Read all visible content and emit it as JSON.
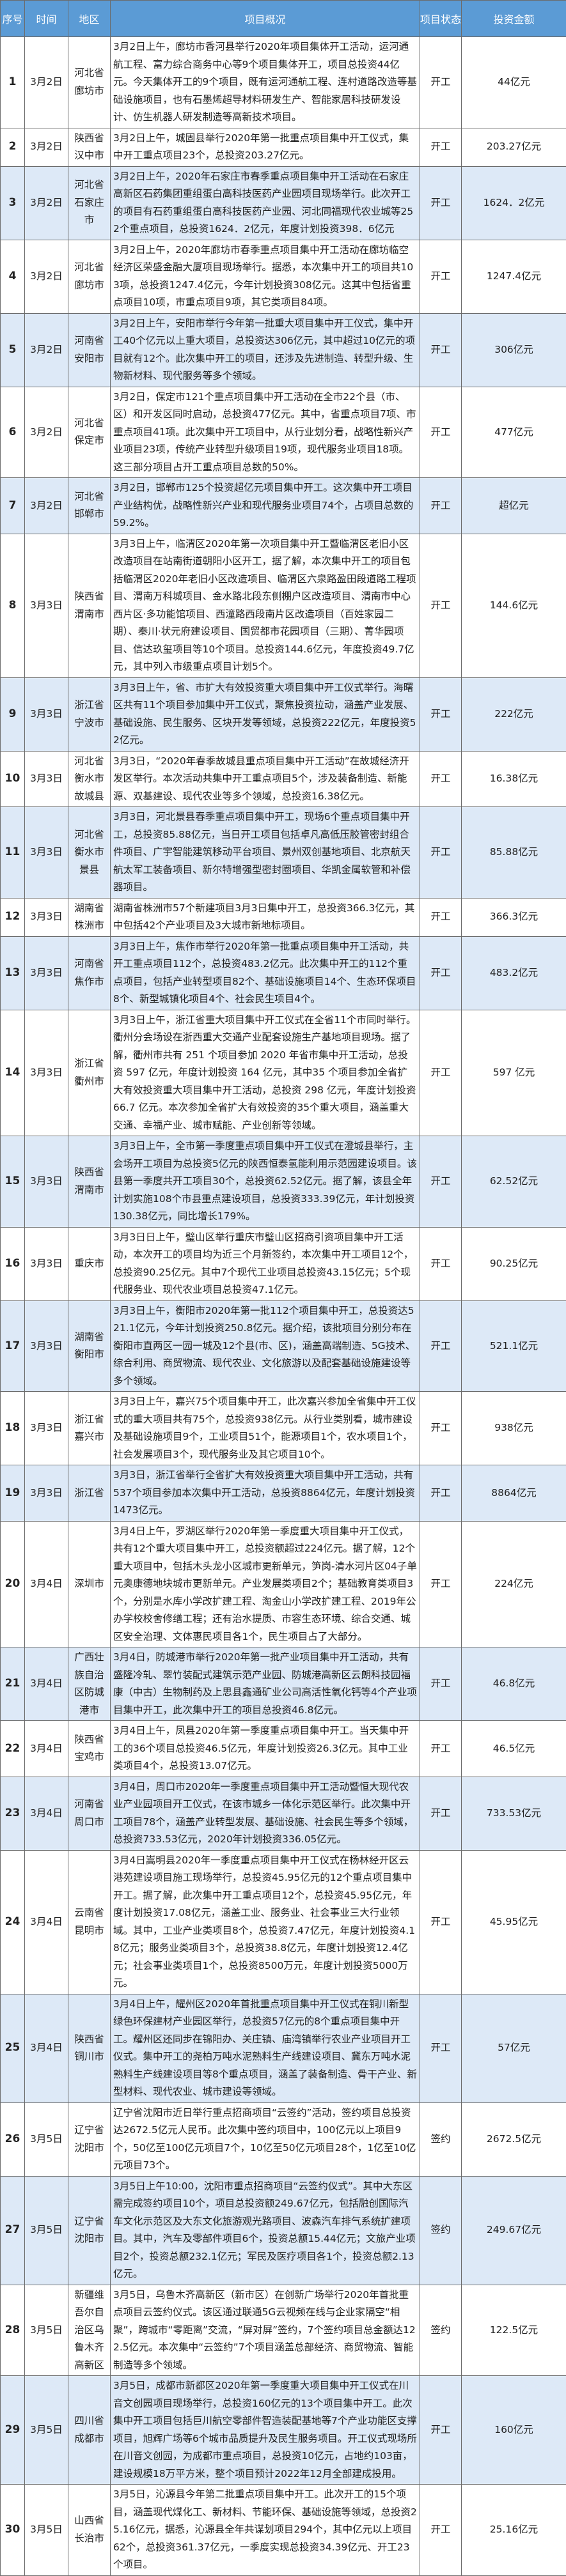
{
  "header": {
    "index": "序号",
    "date": "时间",
    "region": "地区",
    "overview": "项目概况",
    "status": "项目状态",
    "amount": "投资金额"
  },
  "colors": {
    "header_bg": "#5b9bd5",
    "alt_row_bg": "#dde9f7"
  },
  "rows": [
    {
      "no": "1",
      "date": "3月2日",
      "region": "河北省廊坊市",
      "overview": "3月2日上午，廊坊市香河县举行2020年项目集体开工活动，运河通航工程、富力综合商务中心等9个项目集体开工，项目总投资44亿元。今天集体开工的9个项目，既有运河通航工程、连村道路改造等基础设施项目，也有石墨烯超导材料研发生产、智能家居科技研发设计、仿生机器人研发制造等高新技术项目。",
      "status": "开工",
      "amount": "44亿元",
      "alt": false
    },
    {
      "no": "2",
      "date": "3月2日",
      "region": "陕西省汉中市",
      "overview": "3月2日上午，城固县举行2020年第一批重点项目集中开工仪式，集中开工重点项目23个，总投资203.27亿元。",
      "status": "开工",
      "amount": "203.27亿元",
      "alt": false
    },
    {
      "no": "3",
      "date": "3月2日",
      "region": "河北省石家庄市",
      "overview": "3月2日上午，2020年石家庄市春季重点项目集中开工活动在石家庄高新区石药集团重组蛋白高科技医药产业园项目现场举行。此次开工的项目有石药重组蛋白高科技医药产业园、河北同福现代农业城等252个重点项目，总投资1624．2亿元，年度计划投资398．6亿元",
      "status": "开工",
      "amount": "1624．2亿元",
      "alt": true
    },
    {
      "no": "4",
      "date": "3月2日",
      "region": "河北省廊坊市",
      "overview": "3月2日上午，2020年廊坊市春季重点项目集中开工活动在廊坊临空经济区荣盛金融大厦项目现场举行。据悉，本次集中开工的项目共103项，总投资1247.4亿元，今年计划投资308亿元。这其中包括省重点项目10项，市重点项目9项，其它类项目84项。",
      "status": "开工",
      "amount": "1247.4亿元",
      "alt": false
    },
    {
      "no": "5",
      "date": "3月2日",
      "region": "河南省安阳市",
      "overview": "3月2日上午，安阳市举行今年第一批重大项目集中开工仪式，集中开工40个亿元以上重大项目，总投资达306亿元，其中超过10亿元的项目就有12个。此次集中开工的项目，还涉及先进制造、转型升级、生物新材料、现代服务等多个领域。",
      "status": "开工",
      "amount": "306亿元",
      "alt": true
    },
    {
      "no": "6",
      "date": "3月2日",
      "region": "河北省保定市",
      "overview": "3月2日，保定市121个重点项目集中开工活动在全市22个县（市、区）和开发区同时启动，总投资477亿元。其中，省重点项目7项、市重点项目41项。此次集中开工项目中，从行业划分看，战略性新兴产业项目23项，传统产业转型升级项目19项，现代服务业项目18项。这三部分项目占开工重点项目总数的50%。",
      "status": "开工",
      "amount": "477亿元",
      "alt": false
    },
    {
      "no": "7",
      "date": "3月2日",
      "region": "河北省邯郸市",
      "overview": "3月2日，邯郸市125个投资超亿元项目集中开工。这次集中开工项目产业结构优，战略性新兴产业和现代服务业项目74个，占项目总数的59.2%。",
      "status": "开工",
      "amount": "超亿元",
      "alt": true
    },
    {
      "no": "8",
      "date": "3月3日",
      "region": "陕西省渭南市",
      "overview": "3月3日上午，临渭区2020年第一次项目集中开工暨临渭区老旧小区改造项目在站南街道朝阳小区开工，据了解，本次集中开工的项目包括临渭区2020年老旧小区改造项目、临渭区六泉路盈田段道路工程项目、渭南万科城项目、金水路北段东侧棚户区改造项目、渭南市中心西片区·多功能馆项目、西潼路西段南片区改造项目（百姓家园二期）、秦川·状元府建设项目、国贸都市花园项目（三期）、菁华园项目、信达玖玺项目等10个项目。总投资144.6亿元，年度投资49.7亿元，其中列入市级重点项目计划5个。",
      "status": "开工",
      "amount": "144.6亿元",
      "alt": false
    },
    {
      "no": "9",
      "date": "3月3日",
      "region": "浙江省宁波市",
      "overview": "3月3日上午，省、市扩大有效投资重大项目集中开工仪式举行。海曙区共有11个项目参加集中开工仪式，聚焦投资拉动，涵盖产业发展、基础设施、民生服务、区块开发等领域，总投资222亿元，年度投资52亿元。",
      "status": "开工",
      "amount": "222亿元",
      "alt": true
    },
    {
      "no": "10",
      "date": "3月3日",
      "region": "河北省衡水市故城县",
      "overview": "3月3日，“2020年春季故城县重点项目集中开工活动”在故城经济开发区举行。本次活动共集中开工重点项目5个，涉及装备制造、新能源、双基建设、现代农业等多个领域，总投资16.38亿元。",
      "status": "开工",
      "amount": "16.38亿元",
      "alt": false
    },
    {
      "no": "11",
      "date": "3月3日",
      "region": "河北省衡水市景县",
      "overview": "3月3日，河北景县春季重点项目集中开工，现场6个重点项目集中开工，总投资85.88亿元，当日开工项目包括卓凡高低压胶管密封组合件项目、广宇智能建筑移动平台项目、景州双创基地项目、北京航天航太军工装备项目、新尔特增强型密封圈项目、华凯金属软管和补偿器项目。",
      "status": "开工",
      "amount": "85.88亿元",
      "alt": true
    },
    {
      "no": "12",
      "date": "3月3日",
      "region": "湖南省株洲市",
      "overview": "湖南省株洲市57个新建项目3月3日集中开工，总投资366.3亿元，其中包括42个产业项目及3大城市新地标项目。",
      "status": "开工",
      "amount": "366.3亿元",
      "alt": false
    },
    {
      "no": "13",
      "date": "3月3日",
      "region": "河南省焦作市",
      "overview": "3月3日上午，焦作市举行2020年第一批重点项目集中开工活动，共开工重点项目112个，总投资483.2亿元。此次集中开工的112个重点项目，包括产业转型项目82个、基础设施项目14个、生态环保项目8个、新型城镇化项目4个、社会民生项目4个。",
      "status": "开工",
      "amount": "483.2亿元",
      "alt": true
    },
    {
      "no": "14",
      "date": "3月3日",
      "region": "浙江省衢州市",
      "overview": "3月3日上午，浙江省重大项目集中开工仪式在全省11个市同时举行。衢州分会场设在浙西重大交通产业配套设施生产基地项目现场。据了解，衢州市共有 251 个项目参加 2020 年省市集中开工活动，总投资 597 亿元，年度计划投资 164 亿元，其中35 个项目参加全省扩大有效投资重大项目集中开工活动，总投资 298 亿元，年度计划投资 66.7 亿元。本次参加全省扩大有效投资的35个重大项目，涵盖重大交通、幸福产业、城市赋能、产业创新等领域。",
      "status": "开工",
      "amount": "597 亿元",
      "alt": false
    },
    {
      "no": "15",
      "date": "3月3日",
      "region": "陕西省渭南市",
      "overview": "3月3日上午，全市第一季度重点项目集中开工仪式在澄城县举行，主会场开工项目为总投资5亿元的陕西恒泰氢能利用示范园建设项目。该县第一季度共开工项目30个，总投资62.52亿元。据了解，该县全年计划实施108个市县重点建设项目，总投资333.39亿元，年计划投资130.38亿元，同比增长179%。",
      "status": "开工",
      "amount": "62.52亿元",
      "alt": true
    },
    {
      "no": "16",
      "date": "3月3日",
      "region": "重庆市",
      "overview": "3月3日日上午，璧山区举行重庆市璧山区招商引资项目集中开工活动，本次开工的项目均为近三个月新签约，本次集中开工项目12个，总投资90.25亿元。其中7个现代工业项目总投资43.15亿元；5个现代服务业、现代农业项目总投资47.1亿元。",
      "status": "开工",
      "amount": "90.25亿元",
      "alt": false
    },
    {
      "no": "17",
      "date": "3月3日",
      "region": "湖南省衡阳市",
      "overview": "3月3日上午，衡阳市2020年第一批112个项目集中开工，总投资达521.1亿元，今年计划投资250.8亿元。据介绍，该批项目分别分布在衡阳市直两区一园一城及12个县(市、区)，涵盖高端制造、5G技术、综合利用、商贸物流、现代农业、文化旅游以及配套基础设施建设等多个领域。",
      "status": "开工",
      "amount": "521.1亿元",
      "alt": true
    },
    {
      "no": "18",
      "date": "3月3日",
      "region": "浙江省嘉兴市",
      "overview": "3月3日上午，嘉兴75个项目集中开工，此次嘉兴参加全省集中开工仪式的重大项目共有75个，总投资938亿元。从行业类别看，城市建设及基础设施项目9个，工业项目51个，能源项目1个，农水项目1个，社会发展项目3个，现代服务业及其它项目10个。",
      "status": "开工",
      "amount": "938亿元",
      "alt": false
    },
    {
      "no": "19",
      "date": "3月3日",
      "region": "浙江省",
      "overview": "3月3日，浙江省举行全省扩大有效投资重大项目集中开工活动，共有537个项目参加本次集中开工活动，总投资8864亿元，年度计划投资1473亿元。",
      "status": "开工",
      "amount": "8864亿元",
      "alt": true
    },
    {
      "no": "20",
      "date": "3月4日",
      "region": "深圳市",
      "overview": "3月4日上午，罗湖区举行2020年第一季度重大项目集中开工仪式，共有12个重大项目集中开工，总投资额超过224亿元。据了解，12个重大项目中，包括木头龙小区城市更新单元，笋岗-清水河片区04子单元奥康德地块城市更新单元。产业发展类项目2个；基础教育类项目3个，分别是水库小学改扩建工程、淘金山小学改扩建工程、2019年公办学校校舍修缮工程；还有治水提质、市容生态环境、综合交通、城区安全治理、文体惠民项目各1个，民生项目占了大部分。",
      "status": "开工",
      "amount": "224亿元",
      "alt": false
    },
    {
      "no": "21",
      "date": "3月4日",
      "region": "广西壮族自治区防城港市",
      "overview": "3月4日，防城港市举行2020年第一批产业项目集中开工活动，共有盛隆冷轧、翠竹装配式建筑示范产业园、防城港高新区云朗科技园福康（中古）生物制药及上思县鑫通矿业公司高活性氧化钙等4个产业项目集中开工，此次集中开工的项目总投资46.8亿元。",
      "status": "开工",
      "amount": "46.8亿元",
      "alt": true
    },
    {
      "no": "22",
      "date": "3月4日",
      "region": "陕西省宝鸡市",
      "overview": "3月4日上午，凤县2020年第一季度重点项目集中开工。当天集中开工的36个项目总投资46.5亿元，年度计划投资26.3亿元。其中工业类项目4个，总投资13.07亿元。",
      "status": "开工",
      "amount": "46.5亿元",
      "alt": false
    },
    {
      "no": "23",
      "date": "3月4日",
      "region": "河南省周口市",
      "overview": "3月4日，周口市2020年一季度重点项目集中开工活动暨恒大现代农业产业园项目开工仪式，在该市城乡一体化示范区举行。此次集中开工项目78个，涵盖产业转型发展、基础设施、社会民生等多个领域，总投资733.53亿元，2020年计划投资336.05亿元。",
      "status": "开工",
      "amount": "733.53亿元",
      "alt": true
    },
    {
      "no": "24",
      "date": "3月4日",
      "region": "云南省昆明市",
      "overview": "3月4日嵩明县2020年一季度重点项目集中开工仪式在杨林经开区云港苑建设项目施工现场举行，总投资45.95亿元的12个重点项目集中开工。据了解，此次集中开工重点项目12个，总投资45.95亿元，年度计划投资17.08亿元，涵盖工业、服务业、社会事业三大行业领域。其中，工业产业类项目8个，总投资7.47亿元，年度计划投资4.18亿元；服务业类项目3个，总投资38.8亿元，年度计划投资12.4亿元；社会事业类项目1个，总投资8500万元，年度计划投资5000万元。",
      "status": "开工",
      "amount": "45.95亿元",
      "alt": false
    },
    {
      "no": "25",
      "date": "3月4日",
      "region": "陕西省铜川市",
      "overview": "3月4日上午，耀州区2020年首批重点项目集中开工仪式在铜川新型绿色环保建材产业园区举行，总投资57亿元的8个重点项目集中开工。耀州区还同步在锦阳办、关庄镇、庙湾镇举行农业产业项目开工仪式。集中开工的尧柏万吨水泥熟料生产线建设项目、冀东万吨水泥熟料生产线建设项目等8个重点项目，涵盖了装备制造、骨干产业、新型材料、现代农业、城市建设等领域。",
      "status": "开工",
      "amount": "57亿元",
      "alt": true
    },
    {
      "no": "26",
      "date": "3月5日",
      "region": "辽宁省沈阳市",
      "overview": "辽宁省沈阳市近日举行重点招商项目“云签约”活动，签约项目总投资达2672.5亿元人民币。此次集中签约项目中，100亿元以上项目9个，50亿至100亿元项目7个，10亿至50亿元项目28个，1亿至10亿元项目73个。",
      "status": "签约",
      "amount": "2672.5亿元",
      "alt": false
    },
    {
      "no": "27",
      "date": "3月5日",
      "region": "辽宁省沈阳市",
      "overview": "3月5日上午10:00，沈阳市重点招商项目“云签约仪式”。其中大东区需完成签约项目10个，项目总投资额249.67亿元，包括融创国际汽车文化示范区及大东文化旅游观光路项目、波森汽车排气系统扩建项目。其中，汽车及零部件项目6个，投资总额15.44亿元；文旅产业项目2个，投资总额232.1亿元；军民及医疗项目各1个，投资总额2.13亿元。",
      "status": "签约",
      "amount": "249.67亿元",
      "alt": true
    },
    {
      "no": "28",
      "date": "3月5日",
      "region": "新疆维吾尔自治区乌鲁木齐高新区",
      "overview": "3月5日，乌鲁木齐高新区（新市区）在创新广场举行2020年首批重点项目云签约仪式。该区通过联通5G云视频在线与企业家隔空“相聚”，跨城市“零距离”交流，“屏对屏”签约，7个签约项目总金额达122.5亿元。本次集中“云签约”7个项目涵盖总部经济、商贸物流、智能制造等多个领域。",
      "status": "签约",
      "amount": "122.5亿元",
      "alt": false
    },
    {
      "no": "29",
      "date": "3月5日",
      "region": "四川省成都市",
      "overview": "3月5日，成都市新都区2020年第一季度重大项目集中开工仪式在川音文创园项目现场举行，总投资160亿元的13个项目集中开工。此次集中开工项目包括巨川航空零部件智造装配基地等7个产业功能区支撑项目，旭辉广场等6个城市品质提升及民生服务项目。开工仪式现场所在川音文创园，为成都市重点项目，总投资10亿元，占地约103亩，建设规模18万平方米，整个项目预计2022年12月全部建成投用。",
      "status": "开工",
      "amount": "160亿元",
      "alt": true
    },
    {
      "no": "30",
      "date": "3月5日",
      "region": "山西省长治市",
      "overview": "3月5日，沁源县今年第二批重点项目集中开工。此次开工的15个项目，涵盖现代煤化工、新材料、节能环保、基础设施等领域，总投资25.16亿元，据悉，沁源县全年共谋划项目294个，其中亿元以上项目62个，总投资361.37亿元，一季度实现总投资34.39亿元、开工23个项目。",
      "status": "开工",
      "amount": "25.16亿元",
      "alt": false
    }
  ]
}
